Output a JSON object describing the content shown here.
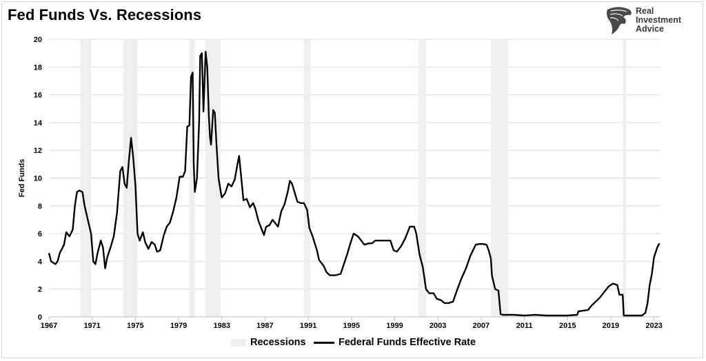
{
  "title": "Fed Funds Vs. Recessions",
  "logo": {
    "lines": [
      "Real",
      "Investment",
      "Advice"
    ],
    "icon": "eagle-head-icon"
  },
  "chart_data": {
    "type": "line",
    "title": "Fed Funds Vs. Recessions",
    "xlabel": "",
    "ylabel": "Fed Funds",
    "xlim": [
      1967,
      2023.6
    ],
    "ylim": [
      0,
      20
    ],
    "yticks": [
      0,
      2,
      4,
      6,
      8,
      10,
      12,
      14,
      16,
      18,
      20
    ],
    "xticks": [
      1967,
      1971,
      1975,
      1979,
      1983,
      1987,
      1991,
      1995,
      1999,
      2003,
      2007,
      2011,
      2015,
      2019,
      2023
    ],
    "grid": true,
    "legend_position": "bottom-center",
    "recessions": [
      [
        1969.9,
        1970.9
      ],
      [
        1973.9,
        1975.2
      ],
      [
        1980.0,
        1980.5
      ],
      [
        1981.5,
        1982.9
      ],
      [
        1990.6,
        1991.2
      ],
      [
        2001.2,
        2001.9
      ],
      [
        2007.9,
        2009.5
      ],
      [
        2020.1,
        2020.4
      ]
    ],
    "series": [
      {
        "name": "Federal Funds Effective Rate",
        "color": "#000000",
        "points": [
          [
            1967.0,
            4.6
          ],
          [
            1967.2,
            4.0
          ],
          [
            1967.4,
            3.9
          ],
          [
            1967.6,
            3.8
          ],
          [
            1967.8,
            4.0
          ],
          [
            1968.0,
            4.6
          ],
          [
            1968.4,
            5.2
          ],
          [
            1968.6,
            6.1
          ],
          [
            1968.9,
            5.8
          ],
          [
            1969.2,
            6.3
          ],
          [
            1969.4,
            8.0
          ],
          [
            1969.6,
            9.0
          ],
          [
            1969.8,
            9.1
          ],
          [
            1970.1,
            9.0
          ],
          [
            1970.3,
            8.0
          ],
          [
            1970.6,
            7.0
          ],
          [
            1970.9,
            6.0
          ],
          [
            1971.1,
            4.0
          ],
          [
            1971.3,
            3.8
          ],
          [
            1971.5,
            4.6
          ],
          [
            1971.8,
            5.5
          ],
          [
            1972.0,
            5.0
          ],
          [
            1972.2,
            3.5
          ],
          [
            1972.4,
            4.3
          ],
          [
            1972.7,
            5.0
          ],
          [
            1973.0,
            5.8
          ],
          [
            1973.3,
            7.5
          ],
          [
            1973.6,
            10.5
          ],
          [
            1973.8,
            10.8
          ],
          [
            1974.0,
            9.6
          ],
          [
            1974.2,
            9.3
          ],
          [
            1974.4,
            11.3
          ],
          [
            1974.6,
            12.9
          ],
          [
            1974.8,
            11.5
          ],
          [
            1975.0,
            9.5
          ],
          [
            1975.2,
            6.0
          ],
          [
            1975.4,
            5.5
          ],
          [
            1975.7,
            6.1
          ],
          [
            1975.9,
            5.4
          ],
          [
            1976.2,
            4.9
          ],
          [
            1976.5,
            5.4
          ],
          [
            1976.8,
            5.2
          ],
          [
            1977.0,
            4.7
          ],
          [
            1977.3,
            4.8
          ],
          [
            1977.6,
            5.8
          ],
          [
            1977.9,
            6.5
          ],
          [
            1978.2,
            6.8
          ],
          [
            1978.5,
            7.6
          ],
          [
            1978.8,
            8.6
          ],
          [
            1979.1,
            10.1
          ],
          [
            1979.4,
            10.1
          ],
          [
            1979.6,
            10.5
          ],
          [
            1979.8,
            13.7
          ],
          [
            1980.0,
            13.8
          ],
          [
            1980.15,
            17.3
          ],
          [
            1980.3,
            17.6
          ],
          [
            1980.4,
            11.0
          ],
          [
            1980.5,
            9.0
          ],
          [
            1980.7,
            10.0
          ],
          [
            1980.9,
            14.0
          ],
          [
            1981.0,
            18.8
          ],
          [
            1981.15,
            19.0
          ],
          [
            1981.3,
            14.8
          ],
          [
            1981.5,
            19.1
          ],
          [
            1981.65,
            18.0
          ],
          [
            1981.8,
            14.5
          ],
          [
            1981.9,
            13.0
          ],
          [
            1982.0,
            12.4
          ],
          [
            1982.2,
            14.9
          ],
          [
            1982.35,
            14.7
          ],
          [
            1982.5,
            12.5
          ],
          [
            1982.7,
            10.0
          ],
          [
            1982.9,
            9.0
          ],
          [
            1983.0,
            8.6
          ],
          [
            1983.3,
            8.9
          ],
          [
            1983.6,
            9.6
          ],
          [
            1983.9,
            9.4
          ],
          [
            1984.2,
            9.9
          ],
          [
            1984.5,
            11.2
          ],
          [
            1984.6,
            11.6
          ],
          [
            1984.8,
            10.0
          ],
          [
            1985.0,
            8.4
          ],
          [
            1985.3,
            8.5
          ],
          [
            1985.6,
            7.9
          ],
          [
            1985.9,
            8.2
          ],
          [
            1986.1,
            7.8
          ],
          [
            1986.4,
            6.9
          ],
          [
            1986.7,
            6.3
          ],
          [
            1986.9,
            5.9
          ],
          [
            1987.1,
            6.5
          ],
          [
            1987.4,
            6.6
          ],
          [
            1987.7,
            7.0
          ],
          [
            1987.9,
            6.8
          ],
          [
            1988.2,
            6.5
          ],
          [
            1988.5,
            7.6
          ],
          [
            1988.8,
            8.1
          ],
          [
            1989.1,
            9.0
          ],
          [
            1989.3,
            9.8
          ],
          [
            1989.5,
            9.6
          ],
          [
            1989.8,
            8.8
          ],
          [
            1990.0,
            8.3
          ],
          [
            1990.3,
            8.2
          ],
          [
            1990.6,
            8.2
          ],
          [
            1990.9,
            7.7
          ],
          [
            1991.1,
            6.4
          ],
          [
            1991.4,
            5.8
          ],
          [
            1991.8,
            4.8
          ],
          [
            1992.0,
            4.1
          ],
          [
            1992.4,
            3.7
          ],
          [
            1992.7,
            3.2
          ],
          [
            1993.0,
            3.0
          ],
          [
            1993.5,
            3.0
          ],
          [
            1994.0,
            3.1
          ],
          [
            1994.3,
            3.8
          ],
          [
            1994.6,
            4.5
          ],
          [
            1994.9,
            5.3
          ],
          [
            1995.2,
            6.0
          ],
          [
            1995.6,
            5.8
          ],
          [
            1995.9,
            5.5
          ],
          [
            1996.2,
            5.2
          ],
          [
            1996.6,
            5.3
          ],
          [
            1996.9,
            5.3
          ],
          [
            1997.2,
            5.5
          ],
          [
            1997.6,
            5.5
          ],
          [
            1998.0,
            5.5
          ],
          [
            1998.6,
            5.5
          ],
          [
            1998.9,
            4.8
          ],
          [
            1999.2,
            4.7
          ],
          [
            1999.6,
            5.1
          ],
          [
            2000.0,
            5.7
          ],
          [
            2000.4,
            6.5
          ],
          [
            2000.8,
            6.5
          ],
          [
            2001.0,
            6.0
          ],
          [
            2001.3,
            4.5
          ],
          [
            2001.6,
            3.6
          ],
          [
            2001.9,
            2.0
          ],
          [
            2002.2,
            1.7
          ],
          [
            2002.6,
            1.7
          ],
          [
            2002.9,
            1.3
          ],
          [
            2003.3,
            1.2
          ],
          [
            2003.6,
            1.0
          ],
          [
            2004.0,
            1.0
          ],
          [
            2004.4,
            1.1
          ],
          [
            2004.8,
            2.0
          ],
          [
            2005.2,
            2.8
          ],
          [
            2005.6,
            3.5
          ],
          [
            2006.0,
            4.4
          ],
          [
            2006.5,
            5.2
          ],
          [
            2006.8,
            5.25
          ],
          [
            2007.2,
            5.25
          ],
          [
            2007.5,
            5.2
          ],
          [
            2007.7,
            4.8
          ],
          [
            2007.9,
            4.2
          ],
          [
            2008.0,
            3.0
          ],
          [
            2008.3,
            2.0
          ],
          [
            2008.6,
            1.9
          ],
          [
            2008.8,
            0.2
          ],
          [
            2009.0,
            0.15
          ],
          [
            2010.0,
            0.15
          ],
          [
            2011.0,
            0.1
          ],
          [
            2012.0,
            0.15
          ],
          [
            2013.0,
            0.1
          ],
          [
            2014.0,
            0.1
          ],
          [
            2015.0,
            0.1
          ],
          [
            2015.9,
            0.15
          ],
          [
            2016.0,
            0.4
          ],
          [
            2016.9,
            0.5
          ],
          [
            2017.2,
            0.8
          ],
          [
            2017.6,
            1.1
          ],
          [
            2018.0,
            1.4
          ],
          [
            2018.4,
            1.8
          ],
          [
            2018.8,
            2.2
          ],
          [
            2019.2,
            2.4
          ],
          [
            2019.6,
            2.3
          ],
          [
            2019.8,
            1.6
          ],
          [
            2020.1,
            1.6
          ],
          [
            2020.2,
            0.1
          ],
          [
            2021.0,
            0.1
          ],
          [
            2021.9,
            0.1
          ],
          [
            2022.2,
            0.3
          ],
          [
            2022.4,
            1.0
          ],
          [
            2022.6,
            2.3
          ],
          [
            2022.8,
            3.1
          ],
          [
            2023.0,
            4.3
          ],
          [
            2023.3,
            5.0
          ],
          [
            2023.5,
            5.3
          ]
        ]
      }
    ],
    "legend": [
      {
        "key": "recessions",
        "label": "Recessions",
        "color": "#efefef"
      },
      {
        "key": "fedfunds",
        "label": "Federal Funds Effective Rate",
        "color": "#000000"
      }
    ]
  }
}
